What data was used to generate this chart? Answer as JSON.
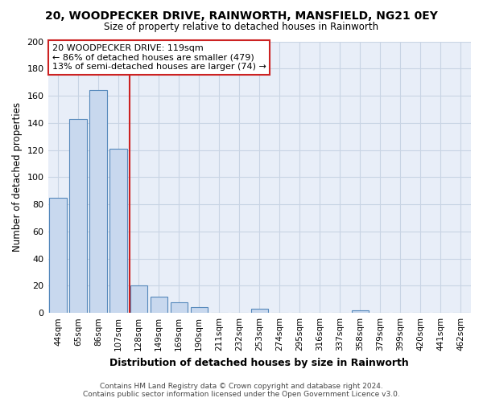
{
  "title": "20, WOODPECKER DRIVE, RAINWORTH, MANSFIELD, NG21 0EY",
  "subtitle": "Size of property relative to detached houses in Rainworth",
  "xlabel": "Distribution of detached houses by size in Rainworth",
  "ylabel": "Number of detached properties",
  "bar_labels": [
    "44sqm",
    "65sqm",
    "86sqm",
    "107sqm",
    "128sqm",
    "149sqm",
    "169sqm",
    "190sqm",
    "211sqm",
    "232sqm",
    "253sqm",
    "274sqm",
    "295sqm",
    "316sqm",
    "337sqm",
    "358sqm",
    "379sqm",
    "399sqm",
    "420sqm",
    "441sqm",
    "462sqm"
  ],
  "bar_values": [
    85,
    143,
    164,
    121,
    20,
    12,
    8,
    4,
    0,
    0,
    3,
    0,
    0,
    0,
    0,
    2,
    0,
    0,
    0,
    0,
    0
  ],
  "bar_fill_color": "#c8d8ee",
  "bar_edge_color": "#5588bb",
  "annotation_text": "20 WOODPECKER DRIVE: 119sqm\n← 86% of detached houses are smaller (479)\n13% of semi-detached houses are larger (74) →",
  "annotation_box_color": "#ffffff",
  "annotation_box_edge": "#cc2222",
  "vline_color": "#cc2222",
  "ylim": [
    0,
    200
  ],
  "yticks": [
    0,
    20,
    40,
    60,
    80,
    100,
    120,
    140,
    160,
    180,
    200
  ],
  "bg_color": "#ffffff",
  "plot_bg_color": "#e8eef8",
  "grid_color": "#c8d4e4",
  "footer_line1": "Contains HM Land Registry data © Crown copyright and database right 2024.",
  "footer_line2": "Contains public sector information licensed under the Open Government Licence v3.0.",
  "prop_value": 119,
  "bin_width": 21
}
